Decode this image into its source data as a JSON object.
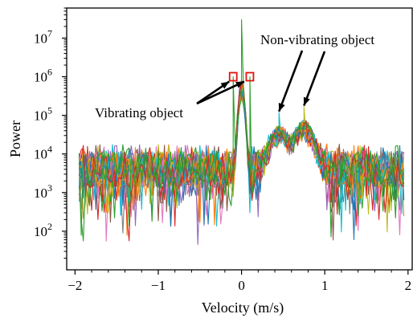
{
  "chart_data": {
    "type": "line",
    "xlabel": "Velocity (m/s)",
    "ylabel": "Power",
    "xlim": [
      -2.1,
      2.05
    ],
    "ylim": [
      10,
      60000000
    ],
    "yscale": "log",
    "grid": false,
    "legend": "none",
    "x_ticks": [
      -2,
      -1,
      0,
      1,
      2
    ],
    "x_tick_labels": [
      "−2",
      "−1",
      "0",
      "1",
      "2"
    ],
    "y_ticks": [
      100,
      1000,
      10000,
      100000,
      1000000,
      10000000
    ],
    "y_tick_labels": [
      {
        "base": "10",
        "exp": "2"
      },
      {
        "base": "10",
        "exp": "3"
      },
      {
        "base": "10",
        "exp": "4"
      },
      {
        "base": "10",
        "exp": "5"
      },
      {
        "base": "10",
        "exp": "6"
      },
      {
        "base": "10",
        "exp": "7"
      }
    ],
    "series_count": 24,
    "series_colors": [
      "#1f77b4",
      "#ff7f0e",
      "#2ca02c",
      "#d62728",
      "#9467bd",
      "#8c564b",
      "#e377c2",
      "#7f7f7f",
      "#bcbd22",
      "#17becf"
    ],
    "central_peak": {
      "x": 0.0,
      "y": 30000000
    },
    "vibrating_peaks": [
      {
        "x": -0.1,
        "y": 1000000
      },
      {
        "x": 0.1,
        "y": 1000000
      }
    ],
    "non_vibrating_peaks": [
      {
        "x": 0.45,
        "y": 120000
      },
      {
        "x": 0.75,
        "y": 170000
      }
    ],
    "noise_floor": {
      "typical": 4000,
      "min": 30,
      "max": 15000
    },
    "annotations": [
      {
        "text": "Vibrating object",
        "points_to": "vibrating_peaks"
      },
      {
        "text": "Non-vibrating object",
        "points_to": "non_vibrating_peaks"
      }
    ],
    "highlight_color": "#e3120b"
  }
}
